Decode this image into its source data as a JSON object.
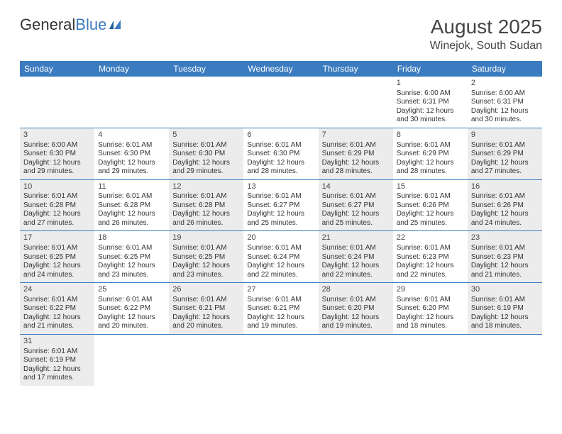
{
  "logo": {
    "part1": "General",
    "part2": "Blue"
  },
  "title": {
    "month": "August 2025",
    "location": "Winejok, South Sudan"
  },
  "header_bg": "#3b7bbf",
  "header_text": "#ffffff",
  "shade_bg": "#ececec",
  "cell_border": "#3b7bbf",
  "weekdays": [
    "Sunday",
    "Monday",
    "Tuesday",
    "Wednesday",
    "Thursday",
    "Friday",
    "Saturday"
  ],
  "rows": [
    [
      null,
      null,
      null,
      null,
      null,
      {
        "n": "1",
        "sr": "Sunrise: 6:00 AM",
        "ss": "Sunset: 6:31 PM",
        "dl": "Daylight: 12 hours and 30 minutes."
      },
      {
        "n": "2",
        "sr": "Sunrise: 6:00 AM",
        "ss": "Sunset: 6:31 PM",
        "dl": "Daylight: 12 hours and 30 minutes."
      }
    ],
    [
      {
        "n": "3",
        "sr": "Sunrise: 6:00 AM",
        "ss": "Sunset: 6:30 PM",
        "dl": "Daylight: 12 hours and 29 minutes.",
        "shade": true
      },
      {
        "n": "4",
        "sr": "Sunrise: 6:01 AM",
        "ss": "Sunset: 6:30 PM",
        "dl": "Daylight: 12 hours and 29 minutes."
      },
      {
        "n": "5",
        "sr": "Sunrise: 6:01 AM",
        "ss": "Sunset: 6:30 PM",
        "dl": "Daylight: 12 hours and 29 minutes.",
        "shade": true
      },
      {
        "n": "6",
        "sr": "Sunrise: 6:01 AM",
        "ss": "Sunset: 6:30 PM",
        "dl": "Daylight: 12 hours and 28 minutes."
      },
      {
        "n": "7",
        "sr": "Sunrise: 6:01 AM",
        "ss": "Sunset: 6:29 PM",
        "dl": "Daylight: 12 hours and 28 minutes.",
        "shade": true
      },
      {
        "n": "8",
        "sr": "Sunrise: 6:01 AM",
        "ss": "Sunset: 6:29 PM",
        "dl": "Daylight: 12 hours and 28 minutes."
      },
      {
        "n": "9",
        "sr": "Sunrise: 6:01 AM",
        "ss": "Sunset: 6:29 PM",
        "dl": "Daylight: 12 hours and 27 minutes.",
        "shade": true
      }
    ],
    [
      {
        "n": "10",
        "sr": "Sunrise: 6:01 AM",
        "ss": "Sunset: 6:28 PM",
        "dl": "Daylight: 12 hours and 27 minutes.",
        "shade": true
      },
      {
        "n": "11",
        "sr": "Sunrise: 6:01 AM",
        "ss": "Sunset: 6:28 PM",
        "dl": "Daylight: 12 hours and 26 minutes."
      },
      {
        "n": "12",
        "sr": "Sunrise: 6:01 AM",
        "ss": "Sunset: 6:28 PM",
        "dl": "Daylight: 12 hours and 26 minutes.",
        "shade": true
      },
      {
        "n": "13",
        "sr": "Sunrise: 6:01 AM",
        "ss": "Sunset: 6:27 PM",
        "dl": "Daylight: 12 hours and 25 minutes."
      },
      {
        "n": "14",
        "sr": "Sunrise: 6:01 AM",
        "ss": "Sunset: 6:27 PM",
        "dl": "Daylight: 12 hours and 25 minutes.",
        "shade": true
      },
      {
        "n": "15",
        "sr": "Sunrise: 6:01 AM",
        "ss": "Sunset: 6:26 PM",
        "dl": "Daylight: 12 hours and 25 minutes."
      },
      {
        "n": "16",
        "sr": "Sunrise: 6:01 AM",
        "ss": "Sunset: 6:26 PM",
        "dl": "Daylight: 12 hours and 24 minutes.",
        "shade": true
      }
    ],
    [
      {
        "n": "17",
        "sr": "Sunrise: 6:01 AM",
        "ss": "Sunset: 6:25 PM",
        "dl": "Daylight: 12 hours and 24 minutes.",
        "shade": true
      },
      {
        "n": "18",
        "sr": "Sunrise: 6:01 AM",
        "ss": "Sunset: 6:25 PM",
        "dl": "Daylight: 12 hours and 23 minutes."
      },
      {
        "n": "19",
        "sr": "Sunrise: 6:01 AM",
        "ss": "Sunset: 6:25 PM",
        "dl": "Daylight: 12 hours and 23 minutes.",
        "shade": true
      },
      {
        "n": "20",
        "sr": "Sunrise: 6:01 AM",
        "ss": "Sunset: 6:24 PM",
        "dl": "Daylight: 12 hours and 22 minutes."
      },
      {
        "n": "21",
        "sr": "Sunrise: 6:01 AM",
        "ss": "Sunset: 6:24 PM",
        "dl": "Daylight: 12 hours and 22 minutes.",
        "shade": true
      },
      {
        "n": "22",
        "sr": "Sunrise: 6:01 AM",
        "ss": "Sunset: 6:23 PM",
        "dl": "Daylight: 12 hours and 22 minutes."
      },
      {
        "n": "23",
        "sr": "Sunrise: 6:01 AM",
        "ss": "Sunset: 6:23 PM",
        "dl": "Daylight: 12 hours and 21 minutes.",
        "shade": true
      }
    ],
    [
      {
        "n": "24",
        "sr": "Sunrise: 6:01 AM",
        "ss": "Sunset: 6:22 PM",
        "dl": "Daylight: 12 hours and 21 minutes.",
        "shade": true
      },
      {
        "n": "25",
        "sr": "Sunrise: 6:01 AM",
        "ss": "Sunset: 6:22 PM",
        "dl": "Daylight: 12 hours and 20 minutes."
      },
      {
        "n": "26",
        "sr": "Sunrise: 6:01 AM",
        "ss": "Sunset: 6:21 PM",
        "dl": "Daylight: 12 hours and 20 minutes.",
        "shade": true
      },
      {
        "n": "27",
        "sr": "Sunrise: 6:01 AM",
        "ss": "Sunset: 6:21 PM",
        "dl": "Daylight: 12 hours and 19 minutes."
      },
      {
        "n": "28",
        "sr": "Sunrise: 6:01 AM",
        "ss": "Sunset: 6:20 PM",
        "dl": "Daylight: 12 hours and 19 minutes.",
        "shade": true
      },
      {
        "n": "29",
        "sr": "Sunrise: 6:01 AM",
        "ss": "Sunset: 6:20 PM",
        "dl": "Daylight: 12 hours and 18 minutes."
      },
      {
        "n": "30",
        "sr": "Sunrise: 6:01 AM",
        "ss": "Sunset: 6:19 PM",
        "dl": "Daylight: 12 hours and 18 minutes.",
        "shade": true
      }
    ],
    [
      {
        "n": "31",
        "sr": "Sunrise: 6:01 AM",
        "ss": "Sunset: 6:19 PM",
        "dl": "Daylight: 12 hours and 17 minutes.",
        "shade": true
      },
      null,
      null,
      null,
      null,
      null,
      null
    ]
  ]
}
